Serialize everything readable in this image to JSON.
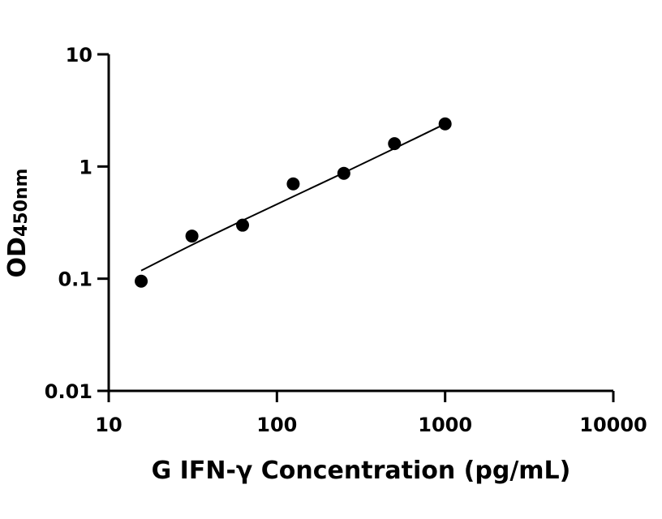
{
  "chart_data": {
    "type": "scatter",
    "x_scale": "log",
    "y_scale": "log",
    "xlim": [
      10,
      10000
    ],
    "ylim": [
      0.01,
      10
    ],
    "x_ticks": [
      10,
      100,
      1000,
      10000
    ],
    "y_ticks": [
      0.01,
      0.1,
      1,
      10
    ],
    "x_tick_labels": [
      "10",
      "100",
      "1000",
      "10000"
    ],
    "y_tick_labels": [
      "0.01",
      "0.1",
      "1",
      "10"
    ],
    "xlabel": "G IFN-γ Concentration (pg/mL)",
    "ylabel_main": "OD",
    "ylabel_sub": "450nm",
    "grid": false,
    "legend": "none",
    "points": [
      {
        "x": 15.6,
        "y": 0.095
      },
      {
        "x": 31.25,
        "y": 0.24
      },
      {
        "x": 62.5,
        "y": 0.3
      },
      {
        "x": 125,
        "y": 0.7
      },
      {
        "x": 250,
        "y": 0.87
      },
      {
        "x": 500,
        "y": 1.6
      },
      {
        "x": 1000,
        "y": 2.4
      }
    ],
    "fit_line": [
      {
        "x": 15.6,
        "y": 0.118
      },
      {
        "x": 31.25,
        "y": 0.2
      },
      {
        "x": 62.5,
        "y": 0.33
      },
      {
        "x": 125,
        "y": 0.54
      },
      {
        "x": 250,
        "y": 0.88
      },
      {
        "x": 500,
        "y": 1.45
      },
      {
        "x": 1000,
        "y": 2.4
      }
    ],
    "color": "#000000"
  }
}
